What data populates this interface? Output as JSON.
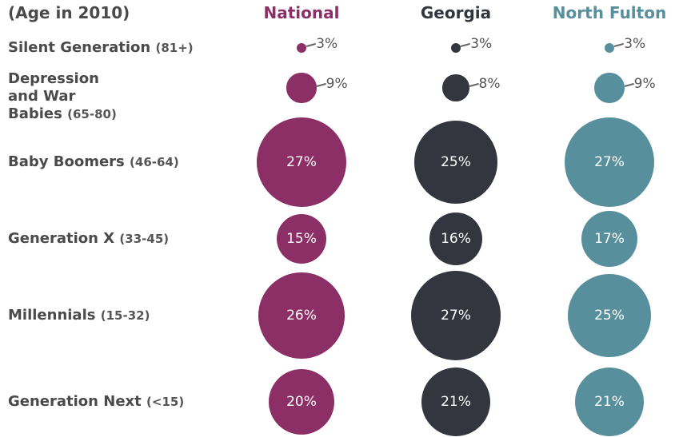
{
  "chart_data": {
    "type": "bubble",
    "title": "(Age in 2010)",
    "categories": [
      "Silent Generation",
      "Depression and War Babies",
      "Baby Boomers",
      "Generation X",
      "Millennials",
      "Generation Next"
    ],
    "age_ranges": [
      "(81+)",
      "(65-80)",
      "(46-64)",
      "(33-45)",
      "(15-32)",
      "(<15)"
    ],
    "series": [
      {
        "name": "National",
        "color": "#8b2f66",
        "values": [
          3,
          9,
          27,
          15,
          26,
          20
        ],
        "value_labels": [
          "3%",
          "9%",
          "27%",
          "15%",
          "26%",
          "20%"
        ]
      },
      {
        "name": "Georgia",
        "color": "#33363f",
        "values": [
          3,
          8,
          25,
          16,
          27,
          21
        ],
        "value_labels": [
          "3%",
          "8%",
          "25%",
          "16%",
          "27%",
          "21%"
        ]
      },
      {
        "name": "North Fulton",
        "color": "#57909c",
        "values": [
          3,
          9,
          27,
          17,
          25,
          21
        ],
        "value_labels": [
          "3%",
          "9%",
          "27%",
          "17%",
          "25%",
          "21%"
        ]
      }
    ]
  }
}
